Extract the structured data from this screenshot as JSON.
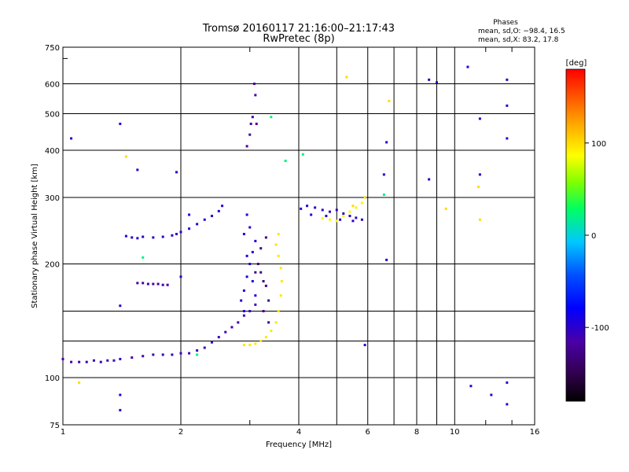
{
  "chart_data": {
    "type": "scatter",
    "title": "Tromsø 20160117 21:16:00–21:17:43",
    "subtitle": "RwPretec (8p)",
    "xlabel": "Frequency [MHz]",
    "ylabel": "Stationary phase Virtual Height [km]",
    "x_scale": "log",
    "y_scale": "log",
    "xlim": [
      1,
      16
    ],
    "ylim": [
      75,
      750
    ],
    "x_ticks": [
      1,
      2,
      4,
      6,
      8,
      10,
      16
    ],
    "y_ticks": [
      75,
      100,
      200,
      300,
      400,
      500,
      600,
      750
    ],
    "grid": true,
    "colorbar": {
      "label": "[deg]",
      "range": [
        -180,
        180
      ],
      "ticks": [
        100,
        0,
        -100
      ]
    },
    "phase_stats": {
      "heading": "Phases",
      "o_line": "mean, sd,O: −98.4, 16.5",
      "x_line": "mean, sd,X:  83.2, 17.8"
    },
    "series": [
      {
        "phase": -110,
        "points": [
          [
            1.0,
            112
          ],
          [
            1.05,
            110
          ],
          [
            1.1,
            110
          ],
          [
            1.15,
            110
          ],
          [
            1.2,
            111
          ],
          [
            1.25,
            110
          ],
          [
            1.3,
            111
          ],
          [
            1.35,
            111
          ],
          [
            1.4,
            112
          ],
          [
            1.5,
            113
          ],
          [
            1.6,
            114
          ],
          [
            1.7,
            115
          ],
          [
            1.8,
            115
          ],
          [
            1.9,
            115
          ],
          [
            2.0,
            116
          ],
          [
            2.1,
            116
          ],
          [
            2.2,
            118
          ],
          [
            2.3,
            120
          ],
          [
            2.4,
            124
          ],
          [
            2.5,
            128
          ],
          [
            2.6,
            132
          ],
          [
            2.7,
            136
          ],
          [
            2.8,
            140
          ],
          [
            2.9,
            146
          ],
          [
            3.0,
            150
          ],
          [
            3.1,
            156
          ]
        ]
      },
      {
        "phase": -100,
        "points": [
          [
            1.45,
            237
          ],
          [
            1.5,
            235
          ],
          [
            1.55,
            234
          ],
          [
            1.6,
            236
          ],
          [
            1.7,
            235
          ],
          [
            1.8,
            236
          ],
          [
            1.9,
            238
          ],
          [
            1.95,
            240
          ],
          [
            2.0,
            243
          ],
          [
            2.1,
            248
          ],
          [
            2.2,
            255
          ],
          [
            2.3,
            262
          ],
          [
            2.4,
            268
          ],
          [
            2.5,
            276
          ],
          [
            2.55,
            285
          ]
        ]
      },
      {
        "phase": -120,
        "points": [
          [
            1.55,
            178
          ],
          [
            1.6,
            178
          ],
          [
            1.65,
            177
          ],
          [
            1.7,
            177
          ],
          [
            1.75,
            177
          ],
          [
            1.8,
            176
          ],
          [
            1.85,
            176
          ]
        ]
      },
      {
        "phase": -95,
        "points": [
          [
            2.85,
            160
          ],
          [
            2.9,
            170
          ],
          [
            2.95,
            185
          ],
          [
            3.0,
            200
          ],
          [
            3.05,
            215
          ],
          [
            3.1,
            230
          ],
          [
            3.0,
            250
          ],
          [
            2.95,
            270
          ],
          [
            2.9,
            240
          ],
          [
            2.95,
            210
          ],
          [
            3.05,
            180
          ],
          [
            3.1,
            165
          ],
          [
            2.9,
            150
          ]
        ]
      },
      {
        "phase": -130,
        "points": [
          [
            3.15,
            200
          ],
          [
            3.2,
            190
          ],
          [
            3.25,
            180
          ],
          [
            3.3,
            175
          ],
          [
            3.35,
            160
          ],
          [
            3.2,
            220
          ],
          [
            3.3,
            235
          ],
          [
            3.1,
            190
          ],
          [
            3.25,
            150
          ],
          [
            3.35,
            140
          ]
        ]
      },
      {
        "phase": 95,
        "points": [
          [
            2.9,
            122
          ],
          [
            3.0,
            122
          ],
          [
            3.1,
            123
          ],
          [
            3.2,
            125
          ],
          [
            3.3,
            128
          ],
          [
            3.4,
            133
          ],
          [
            3.5,
            140
          ],
          [
            3.55,
            150
          ],
          [
            3.6,
            165
          ],
          [
            3.62,
            180
          ],
          [
            3.6,
            195
          ],
          [
            3.55,
            210
          ],
          [
            3.5,
            225
          ],
          [
            3.55,
            240
          ]
        ]
      },
      {
        "phase": -100,
        "points": [
          [
            4.05,
            280
          ],
          [
            4.2,
            285
          ],
          [
            4.4,
            282
          ],
          [
            4.6,
            278
          ],
          [
            4.8,
            275
          ],
          [
            5.0,
            278
          ],
          [
            5.2,
            272
          ],
          [
            5.4,
            268
          ],
          [
            5.6,
            265
          ],
          [
            5.8,
            262
          ],
          [
            4.3,
            270
          ],
          [
            4.7,
            268
          ],
          [
            5.1,
            262
          ],
          [
            5.5,
            260
          ]
        ]
      },
      {
        "phase": 90,
        "points": [
          [
            4.6,
            264
          ],
          [
            4.8,
            262
          ],
          [
            5.0,
            260
          ],
          [
            5.2,
            268
          ],
          [
            5.4,
            275
          ],
          [
            5.6,
            282
          ],
          [
            5.8,
            290
          ]
        ]
      },
      {
        "phase": -120,
        "points": [
          [
            2.95,
            410
          ],
          [
            3.0,
            440
          ],
          [
            3.02,
            470
          ],
          [
            3.05,
            490
          ],
          [
            3.1,
            560
          ],
          [
            3.08,
            600
          ],
          [
            3.12,
            470
          ]
        ]
      },
      {
        "phase": -100,
        "points": [
          [
            1.05,
            430
          ],
          [
            1.4,
            470
          ],
          [
            1.55,
            355
          ],
          [
            1.95,
            350
          ],
          [
            2.1,
            270
          ],
          [
            2.0,
            185
          ],
          [
            1.4,
            155
          ],
          [
            1.4,
            90
          ],
          [
            1.4,
            82
          ],
          [
            6.7,
            420
          ],
          [
            6.6,
            345
          ],
          [
            6.7,
            205
          ],
          [
            5.9,
            122
          ],
          [
            8.6,
            615
          ],
          [
            9.0,
            605
          ],
          [
            8.6,
            335
          ],
          [
            10.8,
            665
          ],
          [
            11.6,
            485
          ],
          [
            11.6,
            345
          ],
          [
            13.6,
            615
          ],
          [
            13.6,
            525
          ],
          [
            13.6,
            430
          ],
          [
            11.0,
            95
          ],
          [
            12.4,
            90
          ],
          [
            13.6,
            85
          ],
          [
            13.6,
            97
          ]
        ]
      },
      {
        "phase": 100,
        "points": [
          [
            1.45,
            385
          ],
          [
            1.1,
            97
          ],
          [
            5.3,
            625
          ],
          [
            6.8,
            540
          ],
          [
            11.6,
            262
          ],
          [
            11.5,
            320
          ],
          [
            9.5,
            280
          ],
          [
            5.9,
            300
          ],
          [
            5.5,
            285
          ]
        ]
      },
      {
        "phase": 20,
        "points": [
          [
            1.6,
            208
          ],
          [
            3.4,
            490
          ],
          [
            4.1,
            390
          ],
          [
            3.7,
            375
          ],
          [
            6.6,
            305
          ],
          [
            2.2,
            115
          ]
        ]
      }
    ]
  }
}
